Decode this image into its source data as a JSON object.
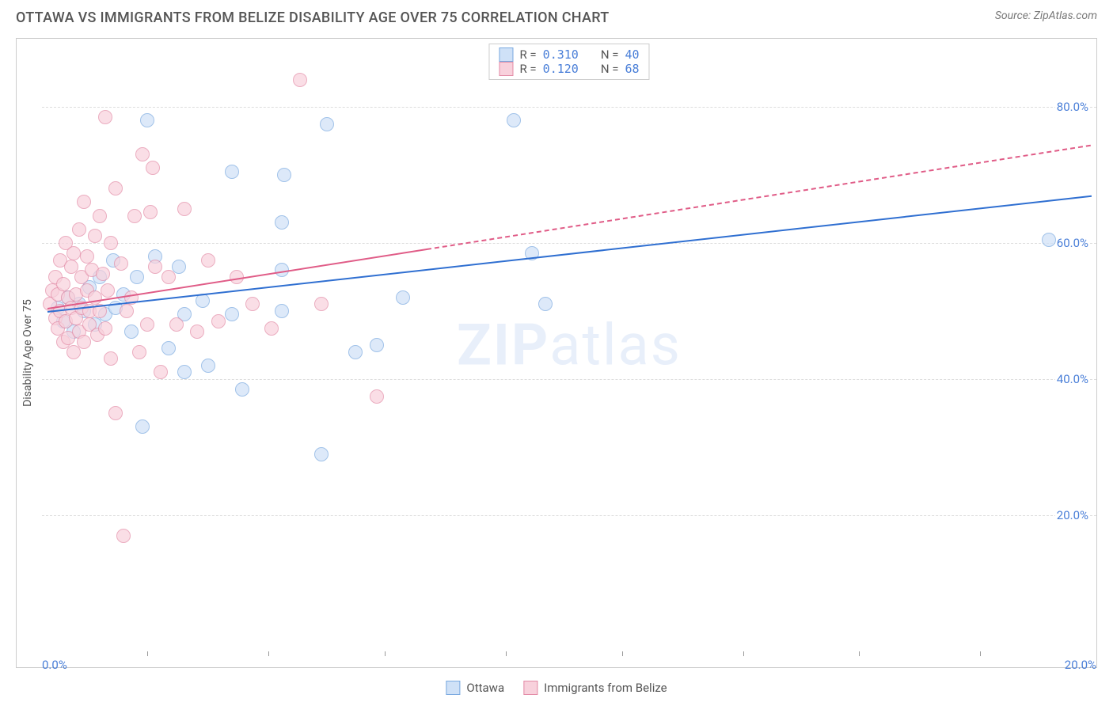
{
  "title": "OTTAWA VS IMMIGRANTS FROM BELIZE DISABILITY AGE OVER 75 CORRELATION CHART",
  "source_label": "Source: ZipAtlas.com",
  "ylabel": "Disability Age Over 75",
  "watermark_bold": "ZIP",
  "watermark_rest": "atlas",
  "legend_top": {
    "rows": [
      {
        "swatch_fill": "#cfe1f7",
        "swatch_border": "#7aa9e0",
        "r_label": "R =",
        "r_value": "0.310",
        "n_label": "N =",
        "n_value": "40"
      },
      {
        "swatch_fill": "#f8d1dc",
        "swatch_border": "#e38ba6",
        "r_label": "R =",
        "r_value": "0.120",
        "n_label": "N =",
        "n_value": "68"
      }
    ]
  },
  "legend_bottom": [
    {
      "swatch_fill": "#cfe1f7",
      "swatch_border": "#7aa9e0",
      "label": "Ottawa"
    },
    {
      "swatch_fill": "#f8d1dc",
      "swatch_border": "#e38ba6",
      "label": "Immigrants from Belize"
    }
  ],
  "chart": {
    "type": "scatter",
    "xlim": [
      0,
      20
    ],
    "ylim": [
      0,
      90
    ],
    "background_color": "#ffffff",
    "grid_color": "#dddddd",
    "yticks": [
      {
        "value": 20,
        "label": "20.0%"
      },
      {
        "value": 40,
        "label": "40.0%"
      },
      {
        "value": 60,
        "label": "60.0%"
      },
      {
        "value": 80,
        "label": "80.0%"
      }
    ],
    "xtick_marks": [
      2.0,
      4.3,
      6.5,
      8.8,
      11.0,
      13.3,
      15.5,
      17.8
    ],
    "xtick_labels": [
      {
        "value": 0,
        "label": "0.0%"
      },
      {
        "value": 20,
        "label": "20.0%"
      }
    ],
    "marker_radius": 9,
    "marker_opacity": 0.7,
    "series": [
      {
        "name": "Ottawa",
        "fill": "#cfe1f7",
        "stroke": "#7aa9e0",
        "trend_color": "#2f6fd1",
        "trend": {
          "x1": 0.1,
          "y1": 50.0,
          "x2": 19.9,
          "y2": 67.0,
          "solid_until_x": 19.9
        },
        "points": [
          [
            0.3,
            50.5
          ],
          [
            0.4,
            48.5
          ],
          [
            0.5,
            52
          ],
          [
            0.6,
            47
          ],
          [
            0.7,
            51
          ],
          [
            0.8,
            50
          ],
          [
            0.9,
            53.5
          ],
          [
            1.0,
            48
          ],
          [
            1.1,
            55
          ],
          [
            1.2,
            49.5
          ],
          [
            1.35,
            57.5
          ],
          [
            1.4,
            50.5
          ],
          [
            1.55,
            52.5
          ],
          [
            1.7,
            47
          ],
          [
            1.8,
            55
          ],
          [
            1.9,
            33
          ],
          [
            2.0,
            78
          ],
          [
            2.15,
            58
          ],
          [
            2.4,
            44.5
          ],
          [
            2.6,
            56.5
          ],
          [
            2.7,
            49.5
          ],
          [
            2.7,
            41
          ],
          [
            3.05,
            51.5
          ],
          [
            3.15,
            42
          ],
          [
            3.6,
            70.5
          ],
          [
            3.6,
            49.5
          ],
          [
            3.8,
            38.5
          ],
          [
            4.6,
            70
          ],
          [
            4.55,
            56
          ],
          [
            4.55,
            50
          ],
          [
            4.55,
            63
          ],
          [
            5.3,
            29
          ],
          [
            5.4,
            77.5
          ],
          [
            5.95,
            44
          ],
          [
            6.35,
            45
          ],
          [
            6.85,
            52
          ],
          [
            8.95,
            78
          ],
          [
            9.3,
            58.5
          ],
          [
            9.55,
            51
          ],
          [
            19.1,
            60.5
          ]
        ]
      },
      {
        "name": "Immigrants from Belize",
        "fill": "#f8d1dc",
        "stroke": "#e38ba6",
        "trend_color": "#e05c87",
        "trend": {
          "x1": 0.1,
          "y1": 50.5,
          "x2": 19.9,
          "y2": 74.5,
          "solid_until_x": 7.3
        },
        "points": [
          [
            0.15,
            51
          ],
          [
            0.2,
            53
          ],
          [
            0.25,
            49
          ],
          [
            0.25,
            55
          ],
          [
            0.3,
            47.5
          ],
          [
            0.3,
            52.5
          ],
          [
            0.35,
            57.5
          ],
          [
            0.35,
            50
          ],
          [
            0.4,
            45.5
          ],
          [
            0.4,
            54
          ],
          [
            0.45,
            48.5
          ],
          [
            0.45,
            60
          ],
          [
            0.5,
            46
          ],
          [
            0.5,
            52
          ],
          [
            0.55,
            56.5
          ],
          [
            0.55,
            50.5
          ],
          [
            0.6,
            44
          ],
          [
            0.6,
            58.5
          ],
          [
            0.65,
            52.5
          ],
          [
            0.65,
            49
          ],
          [
            0.7,
            62
          ],
          [
            0.7,
            47
          ],
          [
            0.75,
            55
          ],
          [
            0.75,
            50.5
          ],
          [
            0.8,
            66
          ],
          [
            0.8,
            45.5
          ],
          [
            0.85,
            53
          ],
          [
            0.85,
            58
          ],
          [
            0.9,
            50
          ],
          [
            0.9,
            48
          ],
          [
            0.95,
            56
          ],
          [
            1.0,
            61
          ],
          [
            1.0,
            52
          ],
          [
            1.05,
            46.5
          ],
          [
            1.1,
            64
          ],
          [
            1.1,
            50
          ],
          [
            1.15,
            55.5
          ],
          [
            1.2,
            78.5
          ],
          [
            1.2,
            47.5
          ],
          [
            1.25,
            53
          ],
          [
            1.3,
            60
          ],
          [
            1.3,
            43
          ],
          [
            1.4,
            68
          ],
          [
            1.4,
            35
          ],
          [
            1.5,
            57
          ],
          [
            1.55,
            17
          ],
          [
            1.6,
            50
          ],
          [
            1.75,
            64
          ],
          [
            1.85,
            44
          ],
          [
            1.9,
            73
          ],
          [
            2.0,
            48
          ],
          [
            2.05,
            64.5
          ],
          [
            2.15,
            56.5
          ],
          [
            2.25,
            41
          ],
          [
            2.4,
            55
          ],
          [
            2.55,
            48
          ],
          [
            2.7,
            65
          ],
          [
            2.95,
            47
          ],
          [
            3.15,
            57.5
          ],
          [
            3.35,
            48.5
          ],
          [
            3.7,
            55
          ],
          [
            4.0,
            51
          ],
          [
            4.35,
            47.5
          ],
          [
            4.9,
            84
          ],
          [
            5.3,
            51
          ],
          [
            6.35,
            37.5
          ],
          [
            1.7,
            52
          ],
          [
            2.1,
            71
          ]
        ]
      }
    ]
  }
}
